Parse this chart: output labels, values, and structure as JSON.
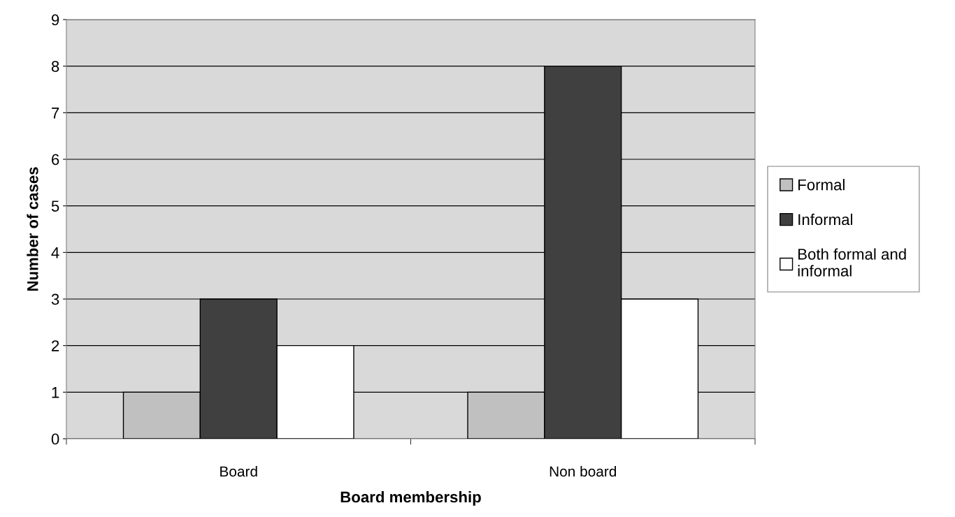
{
  "chart_data": {
    "type": "bar",
    "xlabel": "Board membership",
    "ylabel": "Number of cases",
    "categories": [
      "Board",
      "Non board"
    ],
    "series": [
      {
        "name": "Formal",
        "color": "#c0c0c0",
        "values": [
          1,
          1
        ]
      },
      {
        "name": "Informal",
        "color": "#404040",
        "values": [
          3,
          8
        ]
      },
      {
        "name": "Both formal and\ninformal",
        "color": "#ffffff",
        "values": [
          2,
          3
        ]
      }
    ],
    "ylim": [
      0,
      9
    ],
    "yticks": [
      0,
      1,
      2,
      3,
      4,
      5,
      6,
      7,
      8,
      9
    ],
    "grid": "y",
    "legend": "right"
  }
}
